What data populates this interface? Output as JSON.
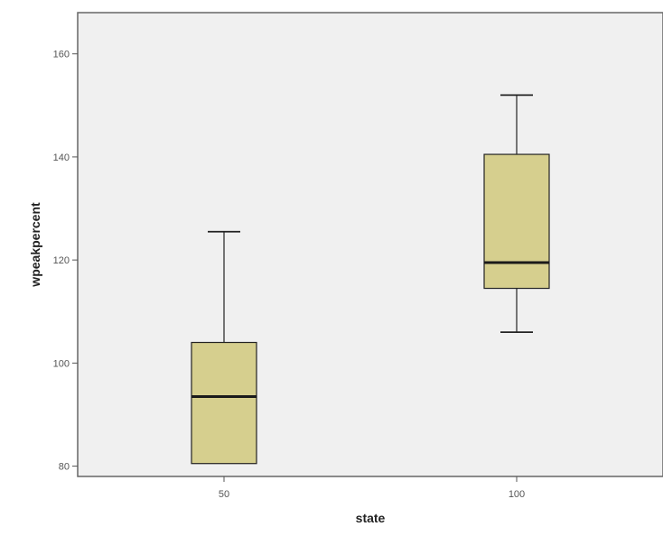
{
  "chart_data": {
    "type": "boxplot",
    "xlabel": "state",
    "ylabel": "wpeakpercent",
    "categories": [
      "50",
      "100"
    ],
    "boxes": [
      {
        "category": "50",
        "min": 80.5,
        "q1": 80.5,
        "median": 93.5,
        "q3": 104,
        "max": 125.5
      },
      {
        "category": "100",
        "min": 106,
        "q1": 114.5,
        "median": 119.5,
        "q3": 140.5,
        "max": 152
      }
    ],
    "yticks": [
      "80",
      "100",
      "120",
      "140",
      "160"
    ],
    "ylim": [
      78,
      168
    ],
    "grid": false,
    "colors": {
      "plot_bg": "#f0f0f0",
      "box_fill": "#d6cf8e",
      "box_stroke": "#222222"
    }
  }
}
